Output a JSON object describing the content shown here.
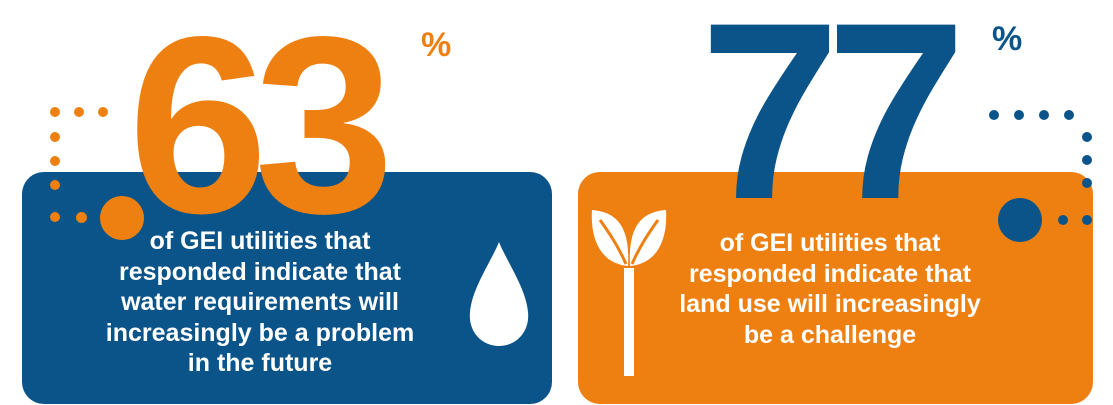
{
  "colors": {
    "orange": "#EE8012",
    "blue": "#0B5489",
    "white": "#FFFFFF"
  },
  "stat_left": {
    "number": "63",
    "unit": "%",
    "caption": "of GEI utilities that\nresponded indicate that\nwater requirements will\nincreasingly be a problem\nin the future",
    "icon": "water-drop-icon"
  },
  "stat_right": {
    "number": "77",
    "unit": "%",
    "caption": "of GEI utilities that\nresponded indicate that\nland use will increasingly\nbe a challenge",
    "icon": "sprout-icon"
  }
}
